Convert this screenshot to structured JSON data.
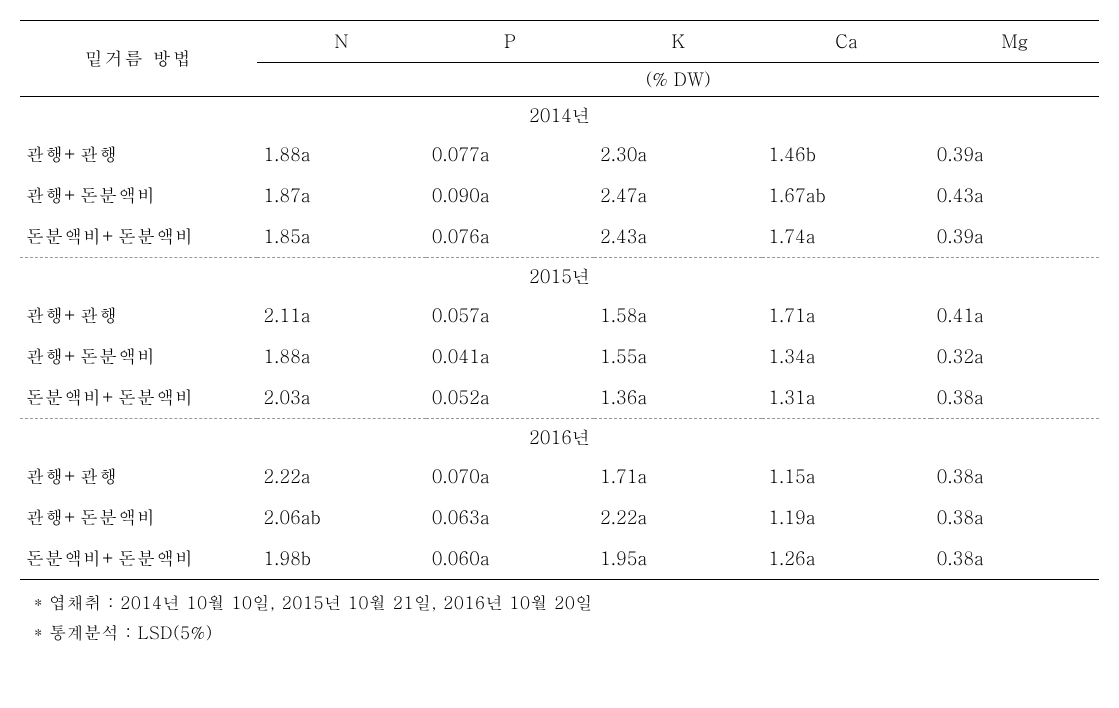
{
  "table": {
    "method_header": "밑거름 방법",
    "columns": [
      "N",
      "P",
      "K",
      "Ca",
      "Mg"
    ],
    "unit_label": "(% DW)",
    "sections": [
      {
        "year": "2014년",
        "rows": [
          {
            "method": "관행+관행",
            "values": [
              "1.88a",
              "0.077a",
              "2.30a",
              "1.46b",
              "0.39a"
            ]
          },
          {
            "method": "관행+돈분액비",
            "values": [
              "1.87a",
              "0.090a",
              "2.47a",
              "1.67ab",
              "0.43a"
            ]
          },
          {
            "method": "돈분액비+돈분액비",
            "values": [
              "1.85a",
              "0.076a",
              "2.43a",
              "1.74a",
              "0.39a"
            ]
          }
        ]
      },
      {
        "year": "2015년",
        "rows": [
          {
            "method": "관행+관행",
            "values": [
              "2.11a",
              "0.057a",
              "1.58a",
              "1.71a",
              "0.41a"
            ]
          },
          {
            "method": "관행+돈분액비",
            "values": [
              "1.88a",
              "0.041a",
              "1.55a",
              "1.34a",
              "0.32a"
            ]
          },
          {
            "method": "돈분액비+돈분액비",
            "values": [
              "2.03a",
              "0.052a",
              "1.36a",
              "1.31a",
              "0.38a"
            ]
          }
        ]
      },
      {
        "year": "2016년",
        "rows": [
          {
            "method": "관행+관행",
            "values": [
              "2.22a",
              "0.070a",
              "1.71a",
              "1.15a",
              "0.38a"
            ]
          },
          {
            "method": "관행+돈분액비",
            "values": [
              "2.06ab",
              "0.063a",
              "2.22a",
              "1.19a",
              "0.38a"
            ]
          },
          {
            "method": "돈분액비+돈분액비",
            "values": [
              "1.98b",
              "0.060a",
              "1.95a",
              "1.26a",
              "0.38a"
            ]
          }
        ]
      }
    ]
  },
  "footnotes": [
    "* 엽채취 : 2014년 10월 10일, 2015년 10월 21일, 2016년 10월 20일",
    "* 통계분석 : LSD(5%)"
  ],
  "style": {
    "font_size_body": 18,
    "font_size_footnote": 17,
    "text_color": "#000000",
    "background_color": "#ffffff",
    "rule_color_solid": "#000000",
    "rule_color_dashed": "#999999",
    "col_widths_pct": [
      22,
      15.6,
      15.6,
      15.6,
      15.6,
      15.6
    ]
  }
}
